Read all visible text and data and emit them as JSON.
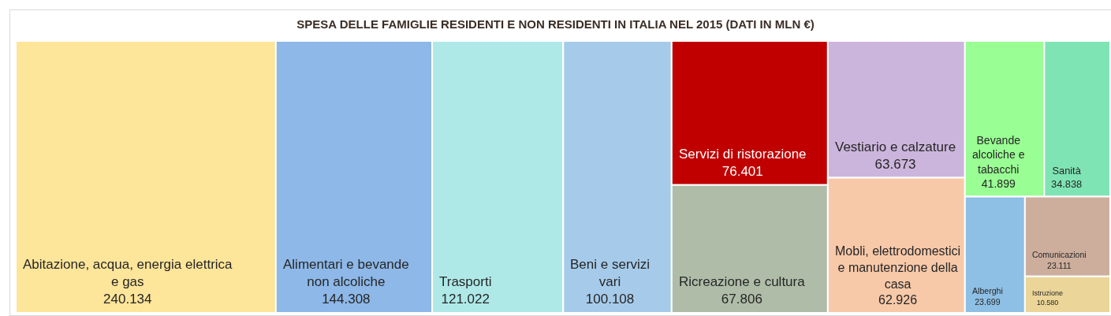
{
  "chart_data": {
    "type": "other",
    "title": "SPESA DELLE FAMIGLIE RESIDENTI E NON RESIDENTI IN ITALIA NEL 2015 (DATI IN MLN €)",
    "categories": [
      "Abitazione, acqua, energia elettrica e gas",
      "Alimentari e bevande non alcoliche",
      "Trasporti",
      "Beni e servizi vari",
      "Servizi di ristorazione",
      "Ricreazione e cultura",
      "Vestiario e calzature",
      "Mobli, elettrodomestici e manutenzione della casa",
      "Bevande alcoliche e tabacchi",
      "Sanità",
      "Alberghi",
      "Comunicazioni",
      "Istruzione"
    ],
    "values": [
      240134,
      144308,
      121022,
      100108,
      76401,
      67806,
      63673,
      62926,
      41899,
      34838,
      23699,
      23111,
      10580
    ],
    "value_labels": [
      "240.134",
      "144.308",
      "121.022",
      "100.108",
      "76.401",
      "67.806",
      "63.673",
      "62.926",
      "41.899",
      "34.838",
      "23.699",
      "23.111",
      "10.580"
    ],
    "colors": [
      "#fde59a",
      "#8db8e8",
      "#aee9e8",
      "#a6cbea",
      "#c00000",
      "#afbda8",
      "#ccb5dc",
      "#f7c9a9",
      "#99fe93",
      "#7fe4b4",
      "#8ebfe4",
      "#cdae9d",
      "#ebd598"
    ]
  }
}
